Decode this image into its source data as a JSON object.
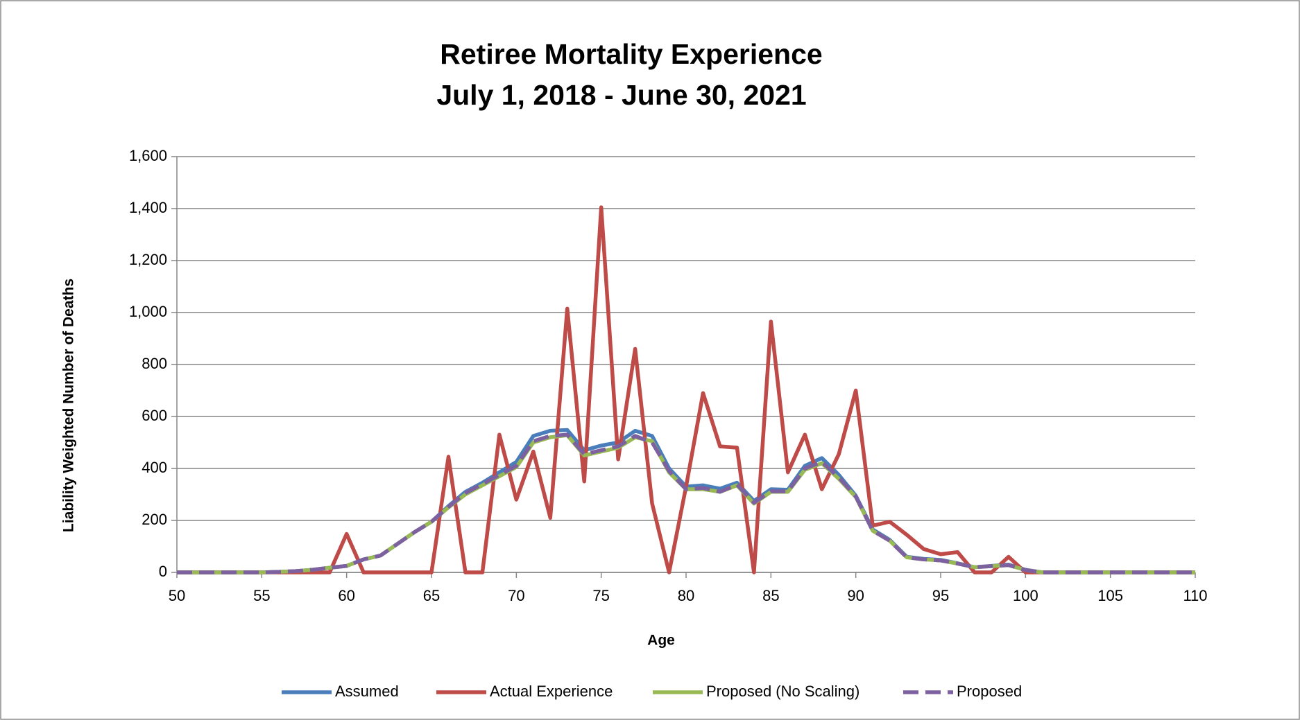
{
  "chart_data": {
    "type": "line",
    "title": "Retiree Mortality Experience",
    "subtitle": "July 1, 2018 - June 30, 2021",
    "x_label": "Age",
    "y_label": "Liability Weighted Number of Deaths",
    "x": [
      50,
      51,
      52,
      53,
      54,
      55,
      56,
      57,
      58,
      59,
      60,
      61,
      62,
      63,
      64,
      65,
      66,
      67,
      68,
      69,
      70,
      71,
      72,
      73,
      74,
      75,
      76,
      77,
      78,
      79,
      80,
      81,
      82,
      83,
      84,
      85,
      86,
      87,
      88,
      89,
      90,
      91,
      92,
      93,
      94,
      95,
      96,
      97,
      98,
      99,
      100,
      101,
      102,
      103,
      104,
      105,
      106,
      107,
      108,
      109,
      110
    ],
    "xlim": [
      50,
      110
    ],
    "xticks": [
      50,
      55,
      60,
      65,
      70,
      75,
      80,
      85,
      90,
      95,
      100,
      105,
      110
    ],
    "ylim": [
      0,
      1600
    ],
    "yticks": [
      0,
      200,
      400,
      600,
      800,
      {
        "value": 1000,
        "label": "1,000"
      },
      {
        "value": 1200,
        "label": "1,200"
      },
      {
        "value": 1400,
        "label": "1,400"
      },
      {
        "value": 1600,
        "label": "1,600"
      }
    ],
    "grid": true,
    "legend": "bottom",
    "series": [
      {
        "name": "Assumed",
        "color": "#4a7ebb",
        "line_style": "solid",
        "values": [
          0,
          0,
          0,
          0,
          0,
          0,
          2,
          5,
          10,
          18,
          25,
          50,
          65,
          110,
          155,
          195,
          255,
          310,
          345,
          385,
          425,
          525,
          545,
          548,
          470,
          488,
          500,
          545,
          525,
          400,
          330,
          335,
          322,
          345,
          275,
          320,
          318,
          410,
          440,
          375,
          295,
          165,
          125,
          60,
          52,
          48,
          35,
          20,
          25,
          30,
          10,
          0,
          0,
          0,
          0,
          0,
          0,
          0,
          0,
          0,
          0
        ]
      },
      {
        "name": "Actual Experience",
        "color": "#be4b48",
        "line_style": "solid",
        "values": [
          0,
          0,
          0,
          0,
          0,
          0,
          0,
          0,
          0,
          0,
          148,
          0,
          0,
          0,
          0,
          0,
          445,
          0,
          0,
          530,
          280,
          465,
          210,
          1015,
          350,
          1405,
          435,
          860,
          265,
          0,
          330,
          690,
          485,
          480,
          0,
          965,
          385,
          530,
          320,
          455,
          700,
          180,
          195,
          145,
          90,
          70,
          78,
          0,
          0,
          60,
          0,
          0,
          0,
          0,
          0,
          0,
          0,
          0,
          0,
          0,
          0
        ]
      },
      {
        "name": "Proposed (No Scaling)",
        "color": "#98b954",
        "line_style": "solid",
        "values": [
          0,
          0,
          0,
          0,
          0,
          0,
          2,
          5,
          10,
          18,
          25,
          50,
          65,
          110,
          155,
          195,
          250,
          300,
          335,
          370,
          405,
          500,
          520,
          528,
          450,
          465,
          480,
          520,
          505,
          385,
          320,
          320,
          310,
          335,
          265,
          310,
          310,
          395,
          420,
          360,
          290,
          160,
          122,
          58,
          50,
          46,
          34,
          20,
          24,
          28,
          9,
          0,
          0,
          0,
          0,
          0,
          0,
          0,
          0,
          0,
          0
        ]
      },
      {
        "name": "Proposed",
        "color": "#7d60a0",
        "line_style": "dashed",
        "values": [
          0,
          0,
          0,
          0,
          0,
          0,
          2,
          5,
          10,
          18,
          25,
          50,
          65,
          110,
          155,
          195,
          252,
          305,
          340,
          375,
          410,
          505,
          525,
          530,
          455,
          470,
          485,
          525,
          500,
          390,
          320,
          325,
          310,
          338,
          268,
          312,
          312,
          400,
          425,
          365,
          292,
          160,
          122,
          58,
          50,
          46,
          34,
          20,
          24,
          28,
          9,
          0,
          0,
          0,
          0,
          0,
          0,
          0,
          0,
          0,
          0
        ]
      }
    ]
  }
}
